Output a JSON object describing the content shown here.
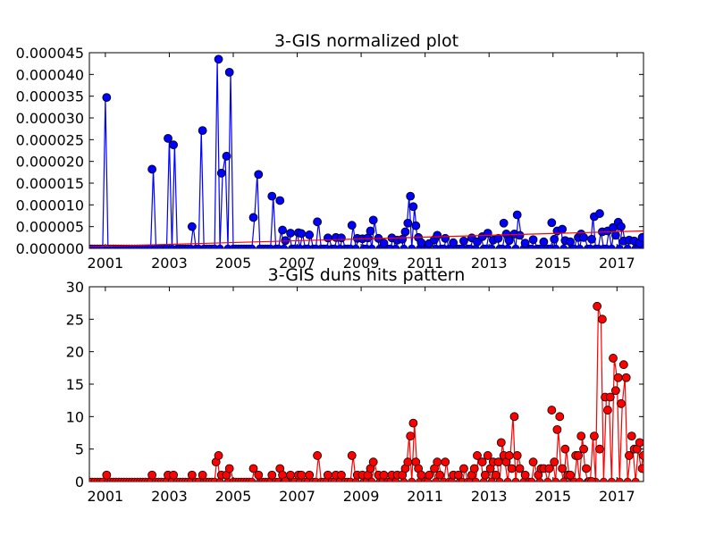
{
  "charts": [
    {
      "title": "3-GIS normalized plot",
      "xticks": [
        "2001",
        "2003",
        "2005",
        "2007",
        "2009",
        "2011",
        "2013",
        "2015",
        "2017"
      ],
      "yticks": [
        "0.000000",
        "0.000005",
        "0.000010",
        "0.000015",
        "0.000020",
        "0.000025",
        "0.000030",
        "0.000035",
        "0.000040",
        "0.000045"
      ]
    },
    {
      "title": "3-GIS duns hits pattern",
      "xticks": [
        "2001",
        "2003",
        "2005",
        "2007",
        "2009",
        "2011",
        "2013",
        "2015",
        "2017"
      ],
      "yticks": [
        "0",
        "5",
        "10",
        "15",
        "20",
        "25",
        "30"
      ]
    }
  ],
  "chart_data": [
    {
      "type": "line",
      "title": "3-GIS normalized plot",
      "xlim": [
        2000.5,
        2017.83
      ],
      "ylim": [
        0,
        4.5e-05
      ],
      "grid": false,
      "series": [
        {
          "color": "#0000ff",
          "marker": "circle",
          "points": [
            [
              2001.04,
              3.47e-05
            ],
            [
              2002.46,
              1.82e-05
            ],
            [
              2002.96,
              2.53e-05
            ],
            [
              2003.13,
              2.38e-05
            ],
            [
              2003.71,
              5e-06
            ],
            [
              2004.04,
              2.71e-05
            ],
            [
              2004.54,
              4.35e-05
            ],
            [
              2004.63,
              1.73e-05
            ],
            [
              2004.79,
              2.12e-05
            ],
            [
              2004.88,
              4.05e-05
            ],
            [
              2005.63,
              7.1e-06
            ],
            [
              2005.79,
              1.7e-05
            ],
            [
              2006.21,
              1.2e-05
            ],
            [
              2006.46,
              1.1e-05
            ],
            [
              2006.54,
              4.2e-06
            ],
            [
              2006.63,
              1.8e-06
            ],
            [
              2006.79,
              3.5e-06
            ],
            [
              2007.04,
              3.6e-06
            ],
            [
              2007.13,
              3.4e-06
            ],
            [
              2007.38,
              3.1e-06
            ],
            [
              2007.63,
              6.1e-06
            ],
            [
              2007.96,
              2.4e-06
            ],
            [
              2008.21,
              2.5e-06
            ],
            [
              2008.38,
              2.4e-06
            ],
            [
              2008.71,
              5.3e-06
            ],
            [
              2008.88,
              2.3e-06
            ],
            [
              2009.04,
              2.2e-06
            ],
            [
              2009.21,
              2.4e-06
            ],
            [
              2009.29,
              4e-06
            ],
            [
              2009.38,
              6.5e-06
            ],
            [
              2009.54,
              2.3e-06
            ],
            [
              2009.71,
              1.2e-06
            ],
            [
              2009.96,
              2.4e-06
            ],
            [
              2010.13,
              1.9e-06
            ],
            [
              2010.29,
              2.1e-06
            ],
            [
              2010.38,
              3.8e-06
            ],
            [
              2010.46,
              5.8e-06
            ],
            [
              2010.54,
              1.2e-05
            ],
            [
              2010.63,
              9.6e-06
            ],
            [
              2010.71,
              5.2e-06
            ],
            [
              2010.79,
              2.5e-06
            ],
            [
              2010.88,
              1.3e-06
            ],
            [
              2011.13,
              1.1e-06
            ],
            [
              2011.29,
              2e-06
            ],
            [
              2011.38,
              3e-06
            ],
            [
              2011.63,
              2.3e-06
            ],
            [
              2011.88,
              1.3e-06
            ],
            [
              2012.21,
              1.7e-06
            ],
            [
              2012.46,
              2.4e-06
            ],
            [
              2012.63,
              1.5e-06
            ],
            [
              2012.79,
              2.7e-06
            ],
            [
              2012.96,
              3.5e-06
            ],
            [
              2013.13,
              1.9e-06
            ],
            [
              2013.29,
              2.3e-06
            ],
            [
              2013.46,
              5.8e-06
            ],
            [
              2013.54,
              3.3e-06
            ],
            [
              2013.63,
              1.8e-06
            ],
            [
              2013.79,
              3.3e-06
            ],
            [
              2013.88,
              7.7e-06
            ],
            [
              2013.96,
              3e-06
            ],
            [
              2014.13,
              1.2e-06
            ],
            [
              2014.38,
              2e-06
            ],
            [
              2014.71,
              1.5e-06
            ],
            [
              2014.96,
              5.9e-06
            ],
            [
              2015.04,
              2.1e-06
            ],
            [
              2015.13,
              4e-06
            ],
            [
              2015.29,
              4.4e-06
            ],
            [
              2015.38,
              1.8e-06
            ],
            [
              2015.54,
              1.5e-06
            ],
            [
              2015.79,
              2.5e-06
            ],
            [
              2015.88,
              3.3e-06
            ],
            [
              2015.96,
              2.5e-06
            ],
            [
              2016.21,
              2.1e-06
            ],
            [
              2016.29,
              7.3e-06
            ],
            [
              2016.46,
              8e-06
            ],
            [
              2016.54,
              3.8e-06
            ],
            [
              2016.71,
              4e-06
            ],
            [
              2016.88,
              4.8e-06
            ],
            [
              2016.96,
              3e-06
            ],
            [
              2017.04,
              6e-06
            ],
            [
              2017.13,
              5e-06
            ],
            [
              2017.21,
              1.7e-06
            ],
            [
              2017.38,
              1.9e-06
            ],
            [
              2017.54,
              1.7e-06
            ],
            [
              2017.71,
              1.2e-06
            ],
            [
              2017.79,
              2.5e-06
            ]
          ]
        },
        {
          "color": "#ff0000",
          "marker": "none",
          "points": [
            [
              2000.5,
              4e-07
            ],
            [
              2017.83,
              4e-06
            ]
          ]
        }
      ]
    },
    {
      "type": "line",
      "title": "3-GIS duns hits pattern",
      "xlim": [
        2000.5,
        2017.83
      ],
      "ylim": [
        0,
        30
      ],
      "grid": false,
      "series": [
        {
          "color": "#ff0000",
          "marker": "circle",
          "points": [
            [
              2001.04,
              1
            ],
            [
              2002.46,
              1
            ],
            [
              2002.96,
              1
            ],
            [
              2003.13,
              1
            ],
            [
              2003.71,
              1
            ],
            [
              2004.04,
              1
            ],
            [
              2004.46,
              3
            ],
            [
              2004.54,
              4
            ],
            [
              2004.63,
              1
            ],
            [
              2004.79,
              1
            ],
            [
              2004.88,
              2
            ],
            [
              2005.63,
              2
            ],
            [
              2005.79,
              1
            ],
            [
              2006.21,
              1
            ],
            [
              2006.46,
              2
            ],
            [
              2006.54,
              1
            ],
            [
              2006.63,
              0
            ],
            [
              2006.79,
              1
            ],
            [
              2007.04,
              1
            ],
            [
              2007.13,
              1
            ],
            [
              2007.38,
              1
            ],
            [
              2007.63,
              4
            ],
            [
              2007.96,
              1
            ],
            [
              2008.21,
              1
            ],
            [
              2008.38,
              1
            ],
            [
              2008.71,
              4
            ],
            [
              2008.88,
              1
            ],
            [
              2009.04,
              1
            ],
            [
              2009.21,
              1
            ],
            [
              2009.29,
              2
            ],
            [
              2009.38,
              3
            ],
            [
              2009.54,
              1
            ],
            [
              2009.71,
              1
            ],
            [
              2009.96,
              1
            ],
            [
              2010.13,
              1
            ],
            [
              2010.29,
              1
            ],
            [
              2010.38,
              2
            ],
            [
              2010.46,
              3
            ],
            [
              2010.54,
              7
            ],
            [
              2010.63,
              9
            ],
            [
              2010.71,
              3
            ],
            [
              2010.79,
              2
            ],
            [
              2010.88,
              1
            ],
            [
              2011.13,
              1
            ],
            [
              2011.29,
              2
            ],
            [
              2011.38,
              3
            ],
            [
              2011.46,
              1
            ],
            [
              2011.63,
              3
            ],
            [
              2011.88,
              1
            ],
            [
              2012.04,
              1
            ],
            [
              2012.21,
              2
            ],
            [
              2012.46,
              1
            ],
            [
              2012.54,
              2
            ],
            [
              2012.63,
              4
            ],
            [
              2012.79,
              3
            ],
            [
              2012.88,
              1
            ],
            [
              2012.96,
              4
            ],
            [
              2013.04,
              2
            ],
            [
              2013.13,
              3
            ],
            [
              2013.21,
              1
            ],
            [
              2013.29,
              3
            ],
            [
              2013.38,
              6
            ],
            [
              2013.46,
              4
            ],
            [
              2013.54,
              3
            ],
            [
              2013.63,
              4
            ],
            [
              2013.71,
              2
            ],
            [
              2013.79,
              10
            ],
            [
              2013.88,
              4
            ],
            [
              2013.96,
              2
            ],
            [
              2014.13,
              1
            ],
            [
              2014.38,
              3
            ],
            [
              2014.54,
              1
            ],
            [
              2014.63,
              2
            ],
            [
              2014.71,
              2
            ],
            [
              2014.88,
              2
            ],
            [
              2014.96,
              11
            ],
            [
              2015.04,
              3
            ],
            [
              2015.13,
              8
            ],
            [
              2015.21,
              10
            ],
            [
              2015.29,
              2
            ],
            [
              2015.38,
              5
            ],
            [
              2015.46,
              1
            ],
            [
              2015.54,
              1
            ],
            [
              2015.71,
              4
            ],
            [
              2015.79,
              4
            ],
            [
              2015.88,
              7
            ],
            [
              2015.96,
              5
            ],
            [
              2016.04,
              2
            ],
            [
              2016.13,
              0
            ],
            [
              2016.21,
              0
            ],
            [
              2016.29,
              7
            ],
            [
              2016.38,
              27
            ],
            [
              2016.46,
              5
            ],
            [
              2016.54,
              25
            ],
            [
              2016.63,
              13
            ],
            [
              2016.71,
              11
            ],
            [
              2016.79,
              13
            ],
            [
              2016.88,
              19
            ],
            [
              2016.96,
              14
            ],
            [
              2017.04,
              16
            ],
            [
              2017.13,
              12
            ],
            [
              2017.21,
              18
            ],
            [
              2017.29,
              16
            ],
            [
              2017.38,
              4
            ],
            [
              2017.46,
              7
            ],
            [
              2017.54,
              5
            ],
            [
              2017.63,
              5
            ],
            [
              2017.71,
              6
            ],
            [
              2017.79,
              2
            ],
            [
              2017.83,
              4
            ]
          ]
        }
      ]
    }
  ]
}
